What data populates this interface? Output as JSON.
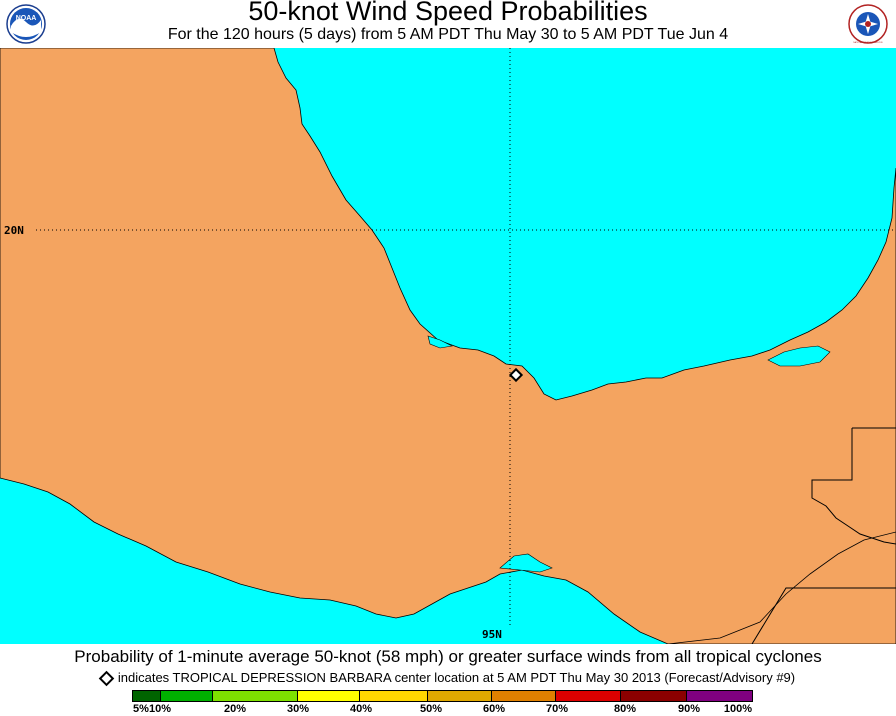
{
  "header": {
    "title": "50-knot Wind Speed Probabilities",
    "subtitle": "For the 120 hours (5 days) from 5 AM PDT Thu May 30 to 5 AM PDT Tue Jun 4"
  },
  "logos": {
    "left": "NOAA",
    "right": "NATIONAL WEATHER SERVICE"
  },
  "map": {
    "lat_label": "20N",
    "lon_label": "95N",
    "colors": {
      "ocean": "#00ffff",
      "land": "#f4a460",
      "border": "#000000"
    },
    "storm_marker": {
      "name": "TROPICAL DEPRESSION BARBARA",
      "icon": "diamond-icon"
    }
  },
  "footer": {
    "caption": "Probability of 1-minute average 50-knot (58 mph) or greater surface winds from all tropical cyclones",
    "note": "indicates TROPICAL DEPRESSION BARBARA center location at 5 AM PDT Thu May 30 2013 (Forecast/Advisory #9)"
  },
  "scale": {
    "labels": [
      "5%",
      "10%",
      "20%",
      "30%",
      "40%",
      "50%",
      "60%",
      "70%",
      "80%",
      "90%",
      "100%"
    ],
    "colors": [
      "#006400",
      "#00b000",
      "#7ee000",
      "#ffff00",
      "#ffd700",
      "#e0a800",
      "#e08000",
      "#dd0000",
      "#8b0000",
      "#800080"
    ]
  }
}
